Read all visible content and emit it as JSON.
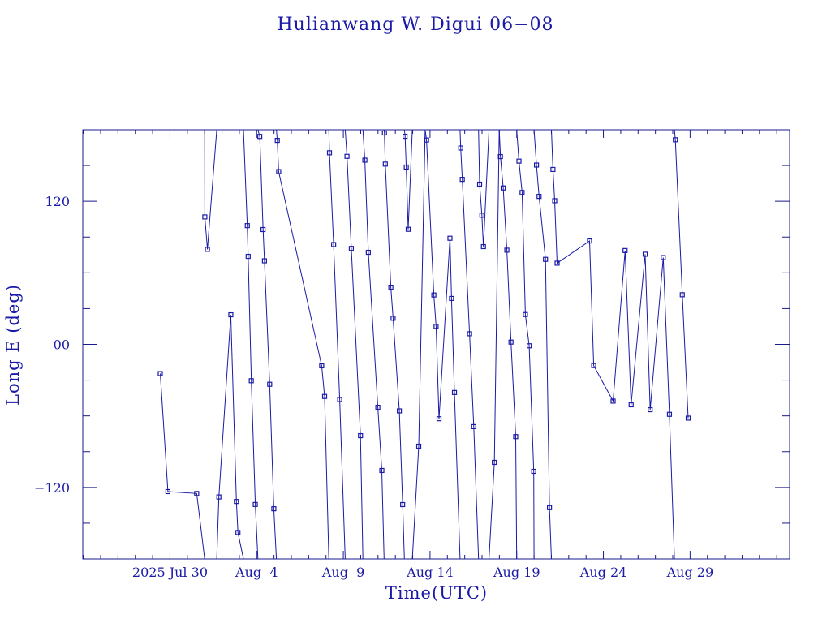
{
  "colors": {
    "axis": "#1a1a8c",
    "line": "#1a1aa6",
    "marker": "#1a1aa6",
    "background": "#ffffff"
  },
  "chart_data": {
    "type": "line",
    "title": "Hulianwang W. Digui 06−08",
    "xlabel": "Time(UTC)",
    "ylabel": "Long E (deg)",
    "xlim": [
      24.97,
      65.74
    ],
    "ylim": [
      -180,
      180
    ],
    "grid": false,
    "yticks": [
      {
        "value": 120,
        "label": "120"
      },
      {
        "value": 0,
        "label": "00"
      },
      {
        "value": -120,
        "label": "−120"
      }
    ],
    "xticks": [
      {
        "value": 30,
        "label": "2025 Jul 30"
      },
      {
        "value": 35,
        "label": "Aug  4"
      },
      {
        "value": 40,
        "label": "Aug  9"
      },
      {
        "value": 45,
        "label": "Aug 14"
      },
      {
        "value": 50,
        "label": "Aug 19"
      },
      {
        "value": 55,
        "label": "Aug 24"
      },
      {
        "value": 60,
        "label": "Aug 29"
      }
    ],
    "x_unit_note": "day of July 2025 (day 32 = Aug 1)",
    "series": [
      {
        "points": [
          [
            29.44,
            -24.5
          ],
          [
            29.88,
            -123.5
          ],
          [
            31.54,
            -125.1
          ],
          [
            32.0,
            -180
          ],
          null,
          [
            32.0,
            180
          ],
          [
            32.01,
            106.9
          ],
          [
            32.16,
            79.7
          ],
          [
            32.7,
            180
          ],
          null,
          [
            32.7,
            -180
          ],
          [
            32.82,
            -128
          ],
          [
            33.51,
            24.8
          ],
          [
            33.83,
            -131.8
          ],
          [
            33.92,
            -157.8
          ],
          [
            34.24,
            -180
          ],
          null,
          [
            34.24,
            180
          ],
          [
            34.46,
            99.6
          ],
          [
            34.51,
            73.8
          ],
          [
            34.69,
            -30.5
          ],
          [
            34.92,
            -134.3
          ],
          [
            35.07,
            -180
          ],
          null,
          [
            35.07,
            180
          ],
          [
            35.18,
            174.4
          ],
          [
            35.37,
            96.3
          ],
          [
            35.45,
            70.1
          ],
          [
            35.75,
            -33.5
          ],
          [
            35.99,
            -137.9
          ],
          [
            36.14,
            -180
          ],
          null,
          [
            36.14,
            180
          ],
          [
            36.19,
            171.1
          ],
          [
            36.27,
            144.9
          ],
          [
            38.75,
            -18
          ],
          [
            38.92,
            -43.7
          ],
          [
            39.16,
            -180
          ],
          null,
          [
            39.16,
            180
          ],
          [
            39.2,
            160.7
          ],
          [
            39.44,
            83.7
          ],
          [
            39.79,
            -46.3
          ],
          [
            40.11,
            -180
          ],
          null,
          [
            40.11,
            180
          ],
          [
            40.21,
            157.7
          ],
          [
            40.46,
            80.5
          ],
          [
            40.99,
            -76.6
          ],
          [
            41.13,
            -180
          ],
          null,
          [
            41.13,
            180
          ],
          [
            41.24,
            154.5
          ],
          [
            41.44,
            77.2
          ],
          [
            41.99,
            -52.8
          ],
          [
            42.22,
            -105.8
          ],
          [
            42.35,
            -180
          ],
          null,
          [
            42.35,
            180
          ],
          [
            42.37,
            177.3
          ],
          [
            42.42,
            151.2
          ],
          [
            42.74,
            47.9
          ],
          [
            42.87,
            21.9
          ],
          [
            43.23,
            -55.8
          ],
          [
            43.42,
            -134.4
          ],
          [
            43.52,
            -180
          ],
          null,
          [
            43.52,
            180
          ],
          [
            43.56,
            174.5
          ],
          [
            43.63,
            148.7
          ],
          [
            43.74,
            96.5
          ],
          [
            43.98,
            180
          ],
          null,
          [
            43.98,
            -180
          ],
          [
            44.35,
            -85.4
          ],
          [
            44.72,
            180
          ],
          null,
          [
            44.72,
            180
          ],
          [
            44.8,
            171.4
          ],
          [
            45.22,
            41.4
          ],
          [
            45.35,
            15.1
          ],
          [
            45.52,
            -62.4
          ],
          [
            46.15,
            89
          ],
          [
            46.24,
            38.5
          ],
          [
            46.41,
            -40.4
          ],
          [
            46.73,
            -180
          ],
          null,
          [
            46.73,
            180
          ],
          [
            46.77,
            164.7
          ],
          [
            46.86,
            138.4
          ],
          [
            47.28,
            8.9
          ],
          [
            47.52,
            -69
          ],
          [
            47.8,
            -180
          ],
          null,
          [
            47.8,
            180
          ],
          [
            47.86,
            134.4
          ],
          [
            47.99,
            108.3
          ],
          [
            48.08,
            82
          ],
          [
            48.4,
            180
          ],
          null,
          [
            48.4,
            -180
          ],
          [
            48.71,
            -99
          ],
          [
            48.99,
            180
          ],
          null,
          [
            48.99,
            180
          ],
          [
            49.06,
            157.5
          ],
          [
            49.22,
            131.2
          ],
          [
            49.43,
            79
          ],
          [
            49.67,
            1.9
          ],
          [
            49.94,
            -77.4
          ],
          [
            50.0,
            -180
          ],
          null,
          [
            50.0,
            180
          ],
          [
            50.13,
            153.7
          ],
          [
            50.31,
            127.4
          ],
          [
            50.5,
            25
          ],
          [
            50.72,
            -1.2
          ],
          [
            50.98,
            -106.5
          ],
          [
            51.0,
            -180
          ],
          null,
          [
            51.0,
            180
          ],
          [
            51.14,
            150.4
          ],
          [
            51.29,
            124.1
          ],
          [
            51.66,
            71.3
          ],
          [
            51.89,
            -137
          ],
          [
            52.0,
            -180
          ],
          null,
          [
            52.0,
            180
          ],
          [
            52.09,
            146.7
          ],
          [
            52.19,
            120.5
          ],
          [
            52.33,
            68.1
          ],
          [
            54.2,
            86.7
          ],
          [
            54.44,
            -17.8
          ],
          [
            55.56,
            -47.6
          ],
          [
            56.25,
            78.7
          ],
          [
            56.6,
            -50.7
          ],
          [
            57.41,
            75.6
          ],
          [
            57.7,
            -54.8
          ],
          [
            58.45,
            72.8
          ],
          [
            58.81,
            -58.7
          ],
          [
            59.1,
            -180
          ],
          null,
          [
            59.1,
            180
          ],
          [
            59.15,
            171.6
          ],
          [
            59.55,
            41.6
          ],
          [
            59.89,
            -61.9
          ]
        ]
      }
    ]
  }
}
